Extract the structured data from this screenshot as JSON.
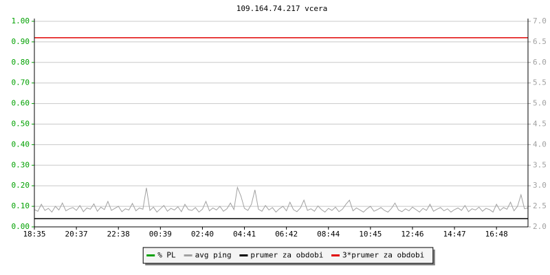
{
  "chart_data": {
    "type": "line",
    "title": "109.164.74.217 vcera",
    "categories": [
      "18:35",
      null,
      null,
      null,
      null,
      null,
      null,
      null,
      null,
      null,
      null,
      null,
      "20:37",
      null,
      null,
      null,
      null,
      null,
      null,
      null,
      null,
      null,
      null,
      null,
      "22:38",
      null,
      null,
      null,
      null,
      null,
      null,
      null,
      null,
      null,
      null,
      null,
      "00:39",
      null,
      null,
      null,
      null,
      null,
      null,
      null,
      null,
      null,
      null,
      null,
      "02:40",
      null,
      null,
      null,
      null,
      null,
      null,
      null,
      null,
      null,
      null,
      null,
      "04:41",
      null,
      null,
      null,
      null,
      null,
      null,
      null,
      null,
      null,
      null,
      null,
      "06:42",
      null,
      null,
      null,
      null,
      null,
      null,
      null,
      null,
      null,
      null,
      null,
      "08:44",
      null,
      null,
      null,
      null,
      null,
      null,
      null,
      null,
      null,
      null,
      null,
      "10:45",
      null,
      null,
      null,
      null,
      null,
      null,
      null,
      null,
      null,
      null,
      null,
      "12:46",
      null,
      null,
      null,
      null,
      null,
      null,
      null,
      null,
      null,
      null,
      null,
      "14:47",
      null,
      null,
      null,
      null,
      null,
      null,
      null,
      null,
      null,
      null,
      null,
      "16:48",
      null,
      null,
      null,
      null,
      null,
      null,
      null,
      null,
      null
    ],
    "series": [
      {
        "name": "% PL",
        "color": "#00a000",
        "values": [
          0,
          0,
          0,
          0,
          0,
          0,
          0,
          0,
          0,
          0,
          0,
          0,
          0,
          0,
          0,
          0,
          0,
          0,
          0,
          0,
          0,
          0,
          0,
          0,
          0,
          0,
          0,
          0,
          0,
          0,
          0,
          0,
          0,
          0,
          0,
          0,
          0,
          0,
          0,
          0,
          0,
          0,
          0,
          0,
          0,
          0,
          0,
          0,
          0,
          0,
          0,
          0,
          0,
          0,
          0,
          0,
          0,
          0,
          0,
          0,
          0,
          0,
          0,
          0,
          0,
          0,
          0,
          0,
          0,
          0,
          0,
          0,
          0,
          0,
          0,
          0,
          0,
          0,
          0,
          0,
          0,
          0,
          0,
          0,
          0,
          0,
          0,
          0,
          0,
          0,
          0,
          0,
          0,
          0,
          0,
          0,
          0,
          0,
          0,
          0,
          0,
          0,
          0,
          0,
          0,
          0,
          0,
          0,
          0,
          0,
          0,
          0,
          0,
          0,
          0,
          0,
          0,
          0,
          0,
          0,
          0,
          0,
          0,
          0,
          0,
          0,
          0,
          0,
          0,
          0,
          0,
          0,
          0,
          0,
          0,
          0,
          0,
          0,
          0,
          0,
          0,
          0
        ]
      },
      {
        "name": "avg ping",
        "color": "#a0a0a0",
        "axis": "y2",
        "values": [
          2.42,
          2.38,
          2.55,
          2.4,
          2.45,
          2.36,
          2.5,
          2.41,
          2.58,
          2.39,
          2.44,
          2.47,
          2.4,
          2.52,
          2.37,
          2.46,
          2.43,
          2.56,
          2.38,
          2.48,
          2.42,
          2.62,
          2.4,
          2.45,
          2.5,
          2.37,
          2.44,
          2.41,
          2.57,
          2.39,
          2.46,
          2.43,
          2.95,
          2.4,
          2.48,
          2.36,
          2.44,
          2.52,
          2.38,
          2.45,
          2.41,
          2.49,
          2.37,
          2.55,
          2.42,
          2.4,
          2.47,
          2.36,
          2.43,
          2.62,
          2.39,
          2.46,
          2.41,
          2.5,
          2.38,
          2.44,
          2.58,
          2.42,
          2.96,
          2.75,
          2.45,
          2.4,
          2.55,
          2.9,
          2.43,
          2.38,
          2.52,
          2.41,
          2.47,
          2.36,
          2.44,
          2.5,
          2.39,
          2.6,
          2.42,
          2.37,
          2.46,
          2.65,
          2.4,
          2.44,
          2.38,
          2.51,
          2.42,
          2.36,
          2.45,
          2.4,
          2.48,
          2.37,
          2.43,
          2.55,
          2.65,
          2.39,
          2.46,
          2.41,
          2.36,
          2.44,
          2.5,
          2.38,
          2.42,
          2.47,
          2.4,
          2.36,
          2.45,
          2.58,
          2.41,
          2.37,
          2.44,
          2.39,
          2.48,
          2.42,
          2.36,
          2.45,
          2.4,
          2.55,
          2.38,
          2.43,
          2.47,
          2.39,
          2.44,
          2.36,
          2.42,
          2.46,
          2.4,
          2.52,
          2.37,
          2.44,
          2.41,
          2.48,
          2.38,
          2.45,
          2.42,
          2.36,
          2.55,
          2.4,
          2.47,
          2.43,
          2.6,
          2.39,
          2.5,
          2.78,
          2.44,
          2.46
        ]
      }
    ],
    "reference_lines": [
      {
        "name": "prumer za obdobi",
        "color": "#000000",
        "axis": "y2",
        "value": 2.2
      },
      {
        "name": "3*prumer za obdobi",
        "color": "#e00000",
        "axis": "y2",
        "value": 6.6
      }
    ],
    "ylim": [
      0,
      1
    ],
    "yticks": [
      {
        "value": 0,
        "label": "0.00"
      },
      {
        "value": 0.1,
        "label": "0.10"
      },
      {
        "value": 0.2,
        "label": "0.20"
      },
      {
        "value": 0.3,
        "label": "0.30"
      },
      {
        "value": 0.4,
        "label": "0.40"
      },
      {
        "value": 0.5,
        "label": "0.50"
      },
      {
        "value": 0.6,
        "label": "0.60"
      },
      {
        "value": 0.7,
        "label": "0.70"
      },
      {
        "value": 0.8,
        "label": "0.80"
      },
      {
        "value": 0.9,
        "label": "0.90"
      },
      {
        "value": 1,
        "label": "1.00"
      }
    ],
    "y2lim": [
      2,
      7
    ],
    "y2ticks": [
      {
        "value": 2,
        "label": "2.0"
      },
      2.5,
      {
        "value": 3,
        "label": "3.0"
      },
      3.5,
      {
        "value": 4,
        "label": "4.0"
      },
      4.5,
      {
        "value": 5,
        "label": "5.0"
      },
      5.5,
      {
        "value": 6,
        "label": "6.0"
      },
      6.5,
      {
        "value": 7,
        "label": "7.0"
      }
    ],
    "grid": true,
    "legend": "bottom"
  }
}
